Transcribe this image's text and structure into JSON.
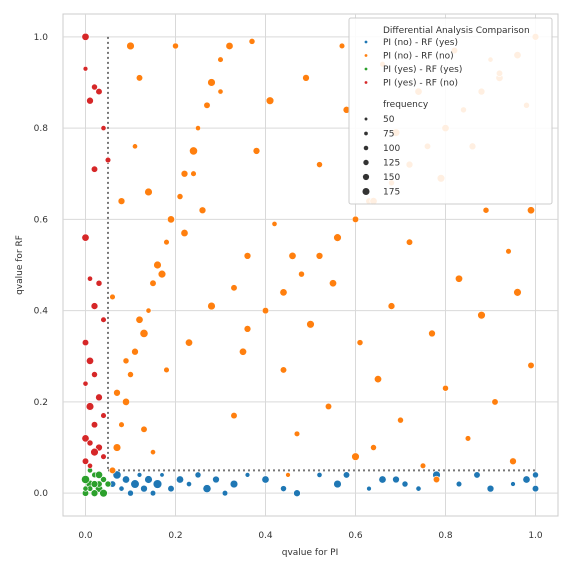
{
  "chart_data": {
    "type": "scatter",
    "title": "",
    "xlabel": "qvalue for PI",
    "ylabel": "qvalue for RF",
    "xlim": [
      -0.05,
      1.05
    ],
    "ylim": [
      -0.05,
      1.05
    ],
    "xticks": [
      "0.0",
      "0.2",
      "0.4",
      "0.6",
      "0.8",
      "1.0"
    ],
    "yticks": [
      "0.0",
      "0.2",
      "0.4",
      "0.6",
      "0.8",
      "1.0"
    ],
    "xtick_values": [
      0,
      0.2,
      0.4,
      0.6,
      0.8,
      1.0
    ],
    "ytick_values": [
      0,
      0.2,
      0.4,
      0.6,
      0.8,
      1.0
    ],
    "grid": true,
    "threshold_lines": {
      "x": 0.05,
      "y": 0.05,
      "style": "dotted",
      "color": "#777777"
    },
    "legend": {
      "placement": "top-right",
      "hue_title": "Differential Analysis Comparison",
      "hue_entries": [
        {
          "label": "PI (no)  - RF (yes)",
          "color": "#1f77b4"
        },
        {
          "label": "PI (no)  - RF (no)",
          "color": "#ff7f0e"
        },
        {
          "label": "PI (yes) - RF (yes)",
          "color": "#2ca02c"
        },
        {
          "label": "PI (yes) - RF (no)",
          "color": "#d62728"
        }
      ],
      "size_title": "frequency",
      "size_entries": [
        "50",
        "75",
        "100",
        "125",
        "150",
        "175"
      ],
      "size_values": [
        50,
        75,
        100,
        125,
        150,
        175
      ]
    },
    "series": [
      {
        "group": "PI (no)  - RF (yes)",
        "color": "#1f77b4",
        "points": [
          [
            0.06,
            0.02,
            120
          ],
          [
            0.07,
            0.04,
            160
          ],
          [
            0.08,
            0.01,
            90
          ],
          [
            0.09,
            0.03,
            140
          ],
          [
            0.1,
            0.0,
            110
          ],
          [
            0.11,
            0.02,
            170
          ],
          [
            0.12,
            0.04,
            80
          ],
          [
            0.13,
            0.01,
            130
          ],
          [
            0.14,
            0.03,
            150
          ],
          [
            0.15,
            0.0,
            100
          ],
          [
            0.16,
            0.02,
            175
          ],
          [
            0.17,
            0.04,
            70
          ],
          [
            0.19,
            0.01,
            120
          ],
          [
            0.21,
            0.03,
            140
          ],
          [
            0.23,
            0.02,
            90
          ],
          [
            0.25,
            0.04,
            110
          ],
          [
            0.27,
            0.01,
            160
          ],
          [
            0.29,
            0.03,
            130
          ],
          [
            0.31,
            0.0,
            100
          ],
          [
            0.33,
            0.02,
            150
          ],
          [
            0.36,
            0.04,
            80
          ],
          [
            0.4,
            0.03,
            140
          ],
          [
            0.44,
            0.01,
            110
          ],
          [
            0.47,
            0.0,
            130
          ],
          [
            0.52,
            0.04,
            90
          ],
          [
            0.56,
            0.02,
            150
          ],
          [
            0.58,
            0.04,
            120
          ],
          [
            0.63,
            0.01,
            80
          ],
          [
            0.66,
            0.03,
            140
          ],
          [
            0.69,
            0.03,
            130
          ],
          [
            0.71,
            0.02,
            110
          ],
          [
            0.74,
            0.01,
            90
          ],
          [
            0.78,
            0.04,
            150
          ],
          [
            0.83,
            0.02,
            100
          ],
          [
            0.87,
            0.04,
            120
          ],
          [
            0.9,
            0.01,
            130
          ],
          [
            0.95,
            0.02,
            80
          ],
          [
            0.98,
            0.03,
            140
          ],
          [
            1.0,
            0.04,
            110
          ],
          [
            1.0,
            0.01,
            120
          ]
        ]
      },
      {
        "group": "PI (no)  - RF (no)",
        "color": "#ff7f0e",
        "points": [
          [
            0.06,
            0.05,
            120
          ],
          [
            0.07,
            0.1,
            150
          ],
          [
            0.08,
            0.15,
            100
          ],
          [
            0.09,
            0.2,
            140
          ],
          [
            0.1,
            0.26,
            110
          ],
          [
            0.11,
            0.31,
            130
          ],
          [
            0.13,
            0.35,
            160
          ],
          [
            0.14,
            0.4,
            90
          ],
          [
            0.15,
            0.46,
            120
          ],
          [
            0.16,
            0.5,
            150
          ],
          [
            0.18,
            0.55,
            100
          ],
          [
            0.19,
            0.6,
            140
          ],
          [
            0.21,
            0.65,
            110
          ],
          [
            0.22,
            0.7,
            130
          ],
          [
            0.24,
            0.75,
            160
          ],
          [
            0.25,
            0.8,
            90
          ],
          [
            0.27,
            0.85,
            120
          ],
          [
            0.28,
            0.9,
            150
          ],
          [
            0.3,
            0.95,
            100
          ],
          [
            0.32,
            0.98,
            140
          ],
          [
            0.1,
            0.98,
            150
          ],
          [
            0.12,
            0.91,
            120
          ],
          [
            0.11,
            0.76,
            90
          ],
          [
            0.14,
            0.66,
            150
          ],
          [
            0.08,
            0.64,
            130
          ],
          [
            0.06,
            0.43,
            100
          ],
          [
            0.12,
            0.38,
            140
          ],
          [
            0.09,
            0.29,
            110
          ],
          [
            0.13,
            0.14,
            120
          ],
          [
            0.15,
            0.09,
            90
          ],
          [
            0.07,
            0.22,
            130
          ],
          [
            0.17,
            0.48,
            150
          ],
          [
            0.2,
            0.98,
            110
          ],
          [
            0.22,
            0.57,
            140
          ],
          [
            0.24,
            0.7,
            100
          ],
          [
            0.26,
            0.62,
            130
          ],
          [
            0.28,
            0.41,
            150
          ],
          [
            0.3,
            0.88,
            90
          ],
          [
            0.33,
            0.17,
            120
          ],
          [
            0.35,
            0.31,
            140
          ],
          [
            0.37,
            0.99,
            110
          ],
          [
            0.38,
            0.75,
            130
          ],
          [
            0.41,
            0.86,
            150
          ],
          [
            0.42,
            0.59,
            90
          ],
          [
            0.44,
            0.27,
            120
          ],
          [
            0.46,
            0.52,
            140
          ],
          [
            0.47,
            0.13,
            100
          ],
          [
            0.49,
            0.91,
            130
          ],
          [
            0.5,
            0.37,
            150
          ],
          [
            0.52,
            0.72,
            110
          ],
          [
            0.54,
            0.19,
            120
          ],
          [
            0.55,
            0.46,
            140
          ],
          [
            0.57,
            0.98,
            100
          ],
          [
            0.58,
            0.84,
            130
          ],
          [
            0.6,
            0.08,
            150
          ],
          [
            0.61,
            0.33,
            110
          ],
          [
            0.63,
            0.64,
            120
          ],
          [
            0.65,
            0.25,
            140
          ],
          [
            0.66,
            0.94,
            100
          ],
          [
            0.68,
            0.41,
            130
          ],
          [
            0.69,
            0.79,
            150
          ],
          [
            0.7,
            0.16,
            110
          ],
          [
            0.72,
            0.55,
            120
          ],
          [
            0.74,
            0.88,
            140
          ],
          [
            0.75,
            0.06,
            100
          ],
          [
            0.77,
            0.35,
            130
          ],
          [
            0.79,
            0.69,
            150
          ],
          [
            0.8,
            0.23,
            110
          ],
          [
            0.82,
            0.97,
            120
          ],
          [
            0.83,
            0.47,
            140
          ],
          [
            0.85,
            0.12,
            100
          ],
          [
            0.86,
            0.76,
            130
          ],
          [
            0.88,
            0.39,
            150
          ],
          [
            0.89,
            0.62,
            110
          ],
          [
            0.91,
            0.2,
            120
          ],
          [
            0.92,
            0.91,
            140
          ],
          [
            0.94,
            0.53,
            100
          ],
          [
            0.95,
            0.07,
            130
          ],
          [
            0.96,
            0.44,
            150
          ],
          [
            0.98,
            0.85,
            110
          ],
          [
            0.99,
            0.28,
            120
          ],
          [
            0.99,
            0.62,
            140
          ],
          [
            0.9,
            0.95,
            90
          ],
          [
            0.78,
            0.03,
            120
          ],
          [
            0.45,
            0.04,
            80
          ],
          [
            0.64,
            0.1,
            110
          ],
          [
            0.36,
            0.52,
            130
          ],
          [
            0.18,
            0.27,
            100
          ],
          [
            0.23,
            0.33,
            140
          ],
          [
            0.33,
            0.45,
            120
          ],
          [
            0.36,
            0.36,
            130
          ],
          [
            0.4,
            0.4,
            120
          ],
          [
            0.44,
            0.44,
            140
          ],
          [
            0.48,
            0.48,
            110
          ],
          [
            0.52,
            0.52,
            130
          ],
          [
            0.56,
            0.56,
            150
          ],
          [
            0.6,
            0.6,
            120
          ],
          [
            0.64,
            0.64,
            140
          ],
          [
            0.68,
            0.68,
            110
          ],
          [
            0.72,
            0.72,
            130
          ],
          [
            0.76,
            0.76,
            120
          ],
          [
            0.8,
            0.8,
            140
          ],
          [
            0.84,
            0.84,
            110
          ],
          [
            0.88,
            0.88,
            130
          ],
          [
            0.92,
            0.92,
            120
          ],
          [
            0.96,
            0.96,
            140
          ],
          [
            1.0,
            1.0,
            130
          ]
        ]
      },
      {
        "group": "PI (yes) - RF (yes)",
        "color": "#2ca02c",
        "points": [
          [
            0.0,
            0.0,
            120
          ],
          [
            0.01,
            0.02,
            150
          ],
          [
            0.02,
            0.04,
            100
          ],
          [
            0.03,
            0.01,
            140
          ],
          [
            0.04,
            0.03,
            110
          ],
          [
            0.02,
            0.0,
            130
          ],
          [
            0.0,
            0.03,
            160
          ],
          [
            0.01,
            0.05,
            90
          ],
          [
            0.03,
            0.02,
            120
          ],
          [
            0.04,
            0.0,
            150
          ],
          [
            0.01,
            0.01,
            100
          ],
          [
            0.03,
            0.04,
            140
          ],
          [
            0.05,
            0.02,
            110
          ],
          [
            0.02,
            0.02,
            130
          ],
          [
            0.0,
            0.01,
            90
          ]
        ]
      },
      {
        "group": "PI (yes) - RF (no)",
        "color": "#d62728",
        "points": [
          [
            0.0,
            1.0,
            140
          ],
          [
            0.0,
            0.93,
            80
          ],
          [
            0.01,
            0.86,
            130
          ],
          [
            0.02,
            0.89,
            110
          ],
          [
            0.03,
            0.88,
            120
          ],
          [
            0.04,
            0.8,
            90
          ],
          [
            0.05,
            0.73,
            100
          ],
          [
            0.02,
            0.71,
            120
          ],
          [
            0.0,
            0.56,
            140
          ],
          [
            0.01,
            0.47,
            90
          ],
          [
            0.03,
            0.46,
            110
          ],
          [
            0.02,
            0.41,
            130
          ],
          [
            0.04,
            0.38,
            100
          ],
          [
            0.0,
            0.33,
            120
          ],
          [
            0.01,
            0.29,
            140
          ],
          [
            0.02,
            0.26,
            110
          ],
          [
            0.0,
            0.24,
            90
          ],
          [
            0.03,
            0.21,
            130
          ],
          [
            0.01,
            0.19,
            150
          ],
          [
            0.04,
            0.17,
            100
          ],
          [
            0.02,
            0.15,
            120
          ],
          [
            0.0,
            0.12,
            140
          ],
          [
            0.01,
            0.11,
            110
          ],
          [
            0.03,
            0.1,
            130
          ],
          [
            0.02,
            0.09,
            150
          ],
          [
            0.04,
            0.08,
            100
          ],
          [
            0.0,
            0.07,
            120
          ],
          [
            0.01,
            0.06,
            90
          ]
        ]
      }
    ]
  }
}
